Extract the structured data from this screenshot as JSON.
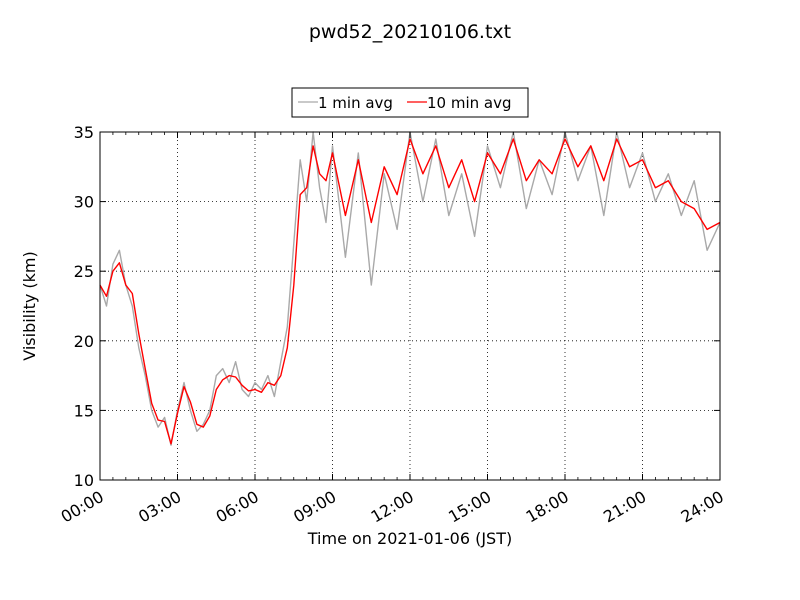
{
  "chart_data": {
    "type": "line",
    "title": "pwd52_20210106.txt",
    "xlabel": "Time on 2021-01-06 (JST)",
    "ylabel": "Visibility (km)",
    "xlim": [
      "00:00",
      "24:00"
    ],
    "ylim": [
      10,
      35
    ],
    "x_ticks": [
      "00:00",
      "03:00",
      "06:00",
      "09:00",
      "12:00",
      "15:00",
      "18:00",
      "21:00",
      "24:00"
    ],
    "y_ticks": [
      10,
      15,
      20,
      25,
      30,
      35
    ],
    "grid": true,
    "legend_position": "top-center",
    "series": [
      {
        "name": "1 min avg",
        "color": "#a9a9a9",
        "x": [
          "00:00",
          "00:15",
          "00:30",
          "00:45",
          "01:00",
          "01:15",
          "01:30",
          "01:45",
          "02:00",
          "02:15",
          "02:30",
          "02:45",
          "03:00",
          "03:15",
          "03:30",
          "03:45",
          "04:00",
          "04:15",
          "04:30",
          "04:45",
          "05:00",
          "05:15",
          "05:30",
          "05:45",
          "06:00",
          "06:15",
          "06:30",
          "06:45",
          "07:00",
          "07:15",
          "07:30",
          "07:45",
          "08:00",
          "08:15",
          "08:30",
          "08:45",
          "09:00",
          "09:30",
          "10:00",
          "10:30",
          "11:00",
          "11:30",
          "12:00",
          "12:30",
          "13:00",
          "13:30",
          "14:00",
          "14:30",
          "15:00",
          "15:30",
          "16:00",
          "16:30",
          "17:00",
          "17:30",
          "18:00",
          "18:30",
          "19:00",
          "19:30",
          "20:00",
          "20:30",
          "21:00",
          "21:30",
          "22:00",
          "22:30",
          "23:00",
          "23:30",
          "24:00"
        ],
        "values": [
          24.0,
          22.5,
          25.5,
          26.5,
          24.0,
          22.5,
          19.5,
          17.5,
          15.0,
          13.8,
          14.5,
          12.5,
          15.0,
          17.0,
          15.0,
          13.5,
          14.0,
          15.0,
          17.5,
          18.0,
          17.0,
          18.5,
          16.5,
          16.0,
          17.0,
          16.5,
          17.5,
          16.0,
          18.5,
          21.0,
          27.0,
          33.0,
          30.0,
          35.0,
          31.0,
          28.5,
          34.0,
          26.0,
          33.5,
          24.0,
          32.0,
          28.0,
          35.0,
          30.0,
          34.5,
          29.0,
          32.0,
          27.5,
          34.0,
          31.0,
          35.0,
          29.5,
          33.0,
          30.5,
          35.0,
          31.5,
          34.0,
          29.0,
          35.0,
          31.0,
          33.5,
          30.0,
          32.0,
          29.0,
          31.5,
          26.5,
          28.5
        ]
      },
      {
        "name": "10 min avg",
        "color": "#ff0000",
        "x": [
          "00:00",
          "00:15",
          "00:30",
          "00:45",
          "01:00",
          "01:15",
          "01:30",
          "01:45",
          "02:00",
          "02:15",
          "02:30",
          "02:45",
          "03:00",
          "03:15",
          "03:30",
          "03:45",
          "04:00",
          "04:15",
          "04:30",
          "04:45",
          "05:00",
          "05:15",
          "05:30",
          "05:45",
          "06:00",
          "06:15",
          "06:30",
          "06:45",
          "07:00",
          "07:15",
          "07:30",
          "07:45",
          "08:00",
          "08:15",
          "08:30",
          "08:45",
          "09:00",
          "09:30",
          "10:00",
          "10:30",
          "11:00",
          "11:30",
          "12:00",
          "12:30",
          "13:00",
          "13:30",
          "14:00",
          "14:30",
          "15:00",
          "15:30",
          "16:00",
          "16:30",
          "17:00",
          "17:30",
          "18:00",
          "18:30",
          "19:00",
          "19:30",
          "20:00",
          "20:30",
          "21:00",
          "21:30",
          "22:00",
          "22:30",
          "23:00",
          "23:30",
          "24:00"
        ],
        "values": [
          24.0,
          23.2,
          25.0,
          25.6,
          24.0,
          23.4,
          20.5,
          18.0,
          15.5,
          14.3,
          14.2,
          12.6,
          14.8,
          16.7,
          15.6,
          14.0,
          13.8,
          14.6,
          16.5,
          17.2,
          17.5,
          17.4,
          16.8,
          16.4,
          16.5,
          16.3,
          17.0,
          16.8,
          17.5,
          19.5,
          24.0,
          30.5,
          31.0,
          34.0,
          32.0,
          31.5,
          33.5,
          29.0,
          33.0,
          28.5,
          32.5,
          30.5,
          34.5,
          32.0,
          34.0,
          31.0,
          33.0,
          30.0,
          33.5,
          32.0,
          34.5,
          31.5,
          33.0,
          32.0,
          34.5,
          32.5,
          34.0,
          31.5,
          34.5,
          32.5,
          33.0,
          31.0,
          31.5,
          30.0,
          29.5,
          28.0,
          28.5
        ]
      }
    ]
  }
}
